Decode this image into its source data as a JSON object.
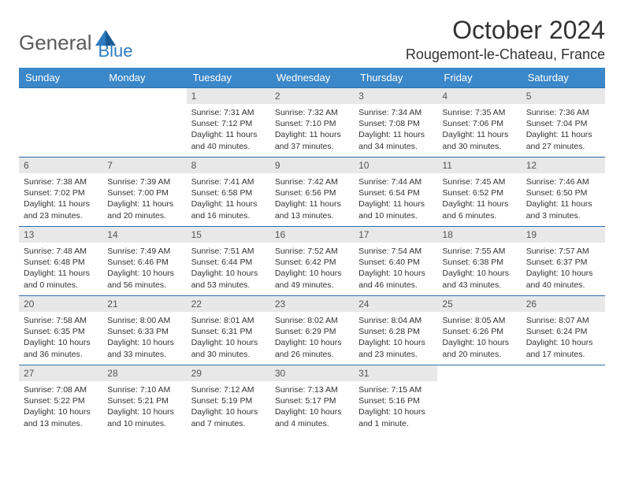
{
  "logo": {
    "text1": "General",
    "text2": "Blue"
  },
  "title": "October 2024",
  "location": "Rougemont-le-Chateau, France",
  "colors": {
    "header_bg": "#3a87c9",
    "border": "#2f6fa8",
    "daynum_bg": "#e8e8e8",
    "logo_gray": "#5a5a5a",
    "logo_blue": "#2f7bbf"
  },
  "weekdays": [
    "Sunday",
    "Monday",
    "Tuesday",
    "Wednesday",
    "Thursday",
    "Friday",
    "Saturday"
  ],
  "weeks": [
    [
      null,
      null,
      {
        "n": "1",
        "sr": "7:31 AM",
        "ss": "7:12 PM",
        "dl": "11 hours and 40 minutes."
      },
      {
        "n": "2",
        "sr": "7:32 AM",
        "ss": "7:10 PM",
        "dl": "11 hours and 37 minutes."
      },
      {
        "n": "3",
        "sr": "7:34 AM",
        "ss": "7:08 PM",
        "dl": "11 hours and 34 minutes."
      },
      {
        "n": "4",
        "sr": "7:35 AM",
        "ss": "7:06 PM",
        "dl": "11 hours and 30 minutes."
      },
      {
        "n": "5",
        "sr": "7:36 AM",
        "ss": "7:04 PM",
        "dl": "11 hours and 27 minutes."
      }
    ],
    [
      {
        "n": "6",
        "sr": "7:38 AM",
        "ss": "7:02 PM",
        "dl": "11 hours and 23 minutes."
      },
      {
        "n": "7",
        "sr": "7:39 AM",
        "ss": "7:00 PM",
        "dl": "11 hours and 20 minutes."
      },
      {
        "n": "8",
        "sr": "7:41 AM",
        "ss": "6:58 PM",
        "dl": "11 hours and 16 minutes."
      },
      {
        "n": "9",
        "sr": "7:42 AM",
        "ss": "6:56 PM",
        "dl": "11 hours and 13 minutes."
      },
      {
        "n": "10",
        "sr": "7:44 AM",
        "ss": "6:54 PM",
        "dl": "11 hours and 10 minutes."
      },
      {
        "n": "11",
        "sr": "7:45 AM",
        "ss": "6:52 PM",
        "dl": "11 hours and 6 minutes."
      },
      {
        "n": "12",
        "sr": "7:46 AM",
        "ss": "6:50 PM",
        "dl": "11 hours and 3 minutes."
      }
    ],
    [
      {
        "n": "13",
        "sr": "7:48 AM",
        "ss": "6:48 PM",
        "dl": "11 hours and 0 minutes."
      },
      {
        "n": "14",
        "sr": "7:49 AM",
        "ss": "6:46 PM",
        "dl": "10 hours and 56 minutes."
      },
      {
        "n": "15",
        "sr": "7:51 AM",
        "ss": "6:44 PM",
        "dl": "10 hours and 53 minutes."
      },
      {
        "n": "16",
        "sr": "7:52 AM",
        "ss": "6:42 PM",
        "dl": "10 hours and 49 minutes."
      },
      {
        "n": "17",
        "sr": "7:54 AM",
        "ss": "6:40 PM",
        "dl": "10 hours and 46 minutes."
      },
      {
        "n": "18",
        "sr": "7:55 AM",
        "ss": "6:38 PM",
        "dl": "10 hours and 43 minutes."
      },
      {
        "n": "19",
        "sr": "7:57 AM",
        "ss": "6:37 PM",
        "dl": "10 hours and 40 minutes."
      }
    ],
    [
      {
        "n": "20",
        "sr": "7:58 AM",
        "ss": "6:35 PM",
        "dl": "10 hours and 36 minutes."
      },
      {
        "n": "21",
        "sr": "8:00 AM",
        "ss": "6:33 PM",
        "dl": "10 hours and 33 minutes."
      },
      {
        "n": "22",
        "sr": "8:01 AM",
        "ss": "6:31 PM",
        "dl": "10 hours and 30 minutes."
      },
      {
        "n": "23",
        "sr": "8:02 AM",
        "ss": "6:29 PM",
        "dl": "10 hours and 26 minutes."
      },
      {
        "n": "24",
        "sr": "8:04 AM",
        "ss": "6:28 PM",
        "dl": "10 hours and 23 minutes."
      },
      {
        "n": "25",
        "sr": "8:05 AM",
        "ss": "6:26 PM",
        "dl": "10 hours and 20 minutes."
      },
      {
        "n": "26",
        "sr": "8:07 AM",
        "ss": "6:24 PM",
        "dl": "10 hours and 17 minutes."
      }
    ],
    [
      {
        "n": "27",
        "sr": "7:08 AM",
        "ss": "5:22 PM",
        "dl": "10 hours and 13 minutes."
      },
      {
        "n": "28",
        "sr": "7:10 AM",
        "ss": "5:21 PM",
        "dl": "10 hours and 10 minutes."
      },
      {
        "n": "29",
        "sr": "7:12 AM",
        "ss": "5:19 PM",
        "dl": "10 hours and 7 minutes."
      },
      {
        "n": "30",
        "sr": "7:13 AM",
        "ss": "5:17 PM",
        "dl": "10 hours and 4 minutes."
      },
      {
        "n": "31",
        "sr": "7:15 AM",
        "ss": "5:16 PM",
        "dl": "10 hours and 1 minute."
      },
      null,
      null
    ]
  ],
  "labels": {
    "sunrise": "Sunrise: ",
    "sunset": "Sunset: ",
    "daylight": "Daylight: "
  }
}
